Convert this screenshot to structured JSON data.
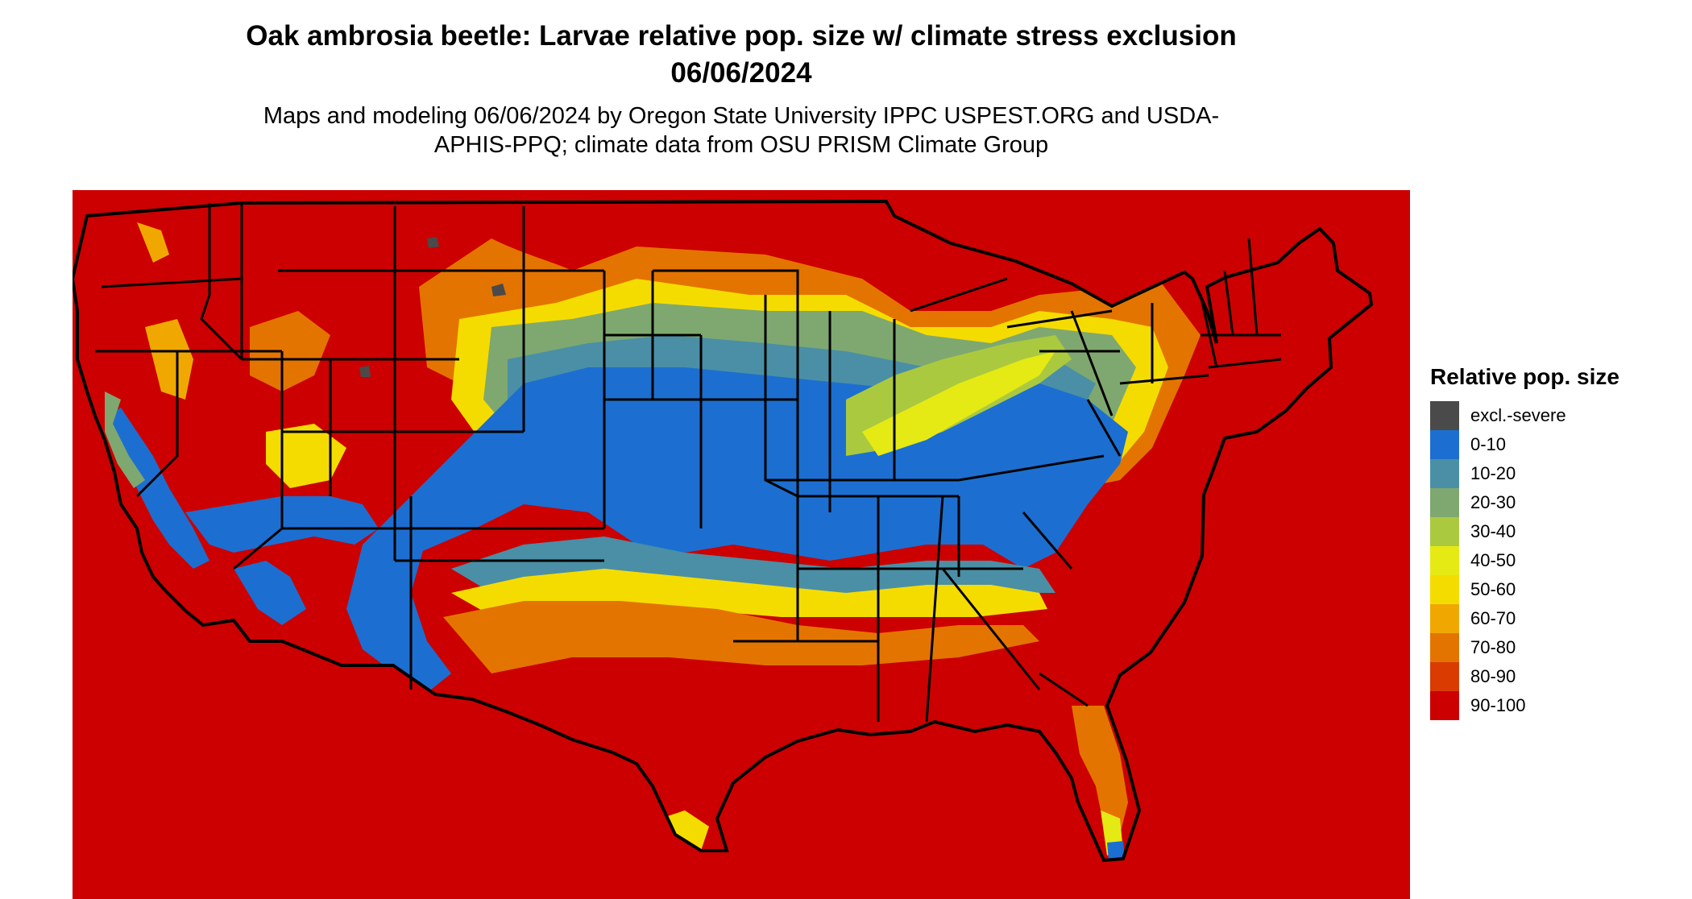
{
  "title": "Oak ambrosia beetle: Larvae relative pop. size w/ climate stress exclusion 06/06/2024",
  "subtitle": "Maps and modeling 06/06/2024 by Oregon State University IPPC USPEST.ORG and USDA-APHIS-PPQ; climate data from OSU PRISM Climate Group",
  "legend": {
    "title": "Relative pop. size",
    "items": [
      {
        "label": "excl.-severe",
        "color": "#4a4a4a"
      },
      {
        "label": "0-10",
        "color": "#1c6fd0"
      },
      {
        "label": "10-20",
        "color": "#4a8fa6"
      },
      {
        "label": "20-30",
        "color": "#7fa870"
      },
      {
        "label": "30-40",
        "color": "#abc93f"
      },
      {
        "label": "40-50",
        "color": "#e5ea14"
      },
      {
        "label": "50-60",
        "color": "#f5dc00"
      },
      {
        "label": "60-70",
        "color": "#f0a800"
      },
      {
        "label": "70-80",
        "color": "#e47400"
      },
      {
        "label": "80-90",
        "color": "#d93b00"
      },
      {
        "label": "90-100",
        "color": "#cc0000"
      }
    ]
  },
  "map": {
    "region": "Contiguous United States",
    "boundaries": "state",
    "zones": [
      {
        "band": "90-100",
        "area": "northern tier and interior West"
      },
      {
        "band": "60-80",
        "area": "northern Great Plains to Great Lakes transition"
      },
      {
        "band": "50-60",
        "area": "central Plains and lower Great Lakes"
      },
      {
        "band": "20-30",
        "area": "Corn Belt and Ohio Valley"
      },
      {
        "band": "10-20",
        "area": "central Midwest"
      },
      {
        "band": "0-10",
        "area": "southern Plains, mid-South and Southeast interior; California Central Valley"
      },
      {
        "band": "40-60",
        "area": "Appalachian ridge and Gulf coastal fringe"
      },
      {
        "band": "70-100",
        "area": "Gulf Coast, Texas and Florida"
      }
    ]
  }
}
